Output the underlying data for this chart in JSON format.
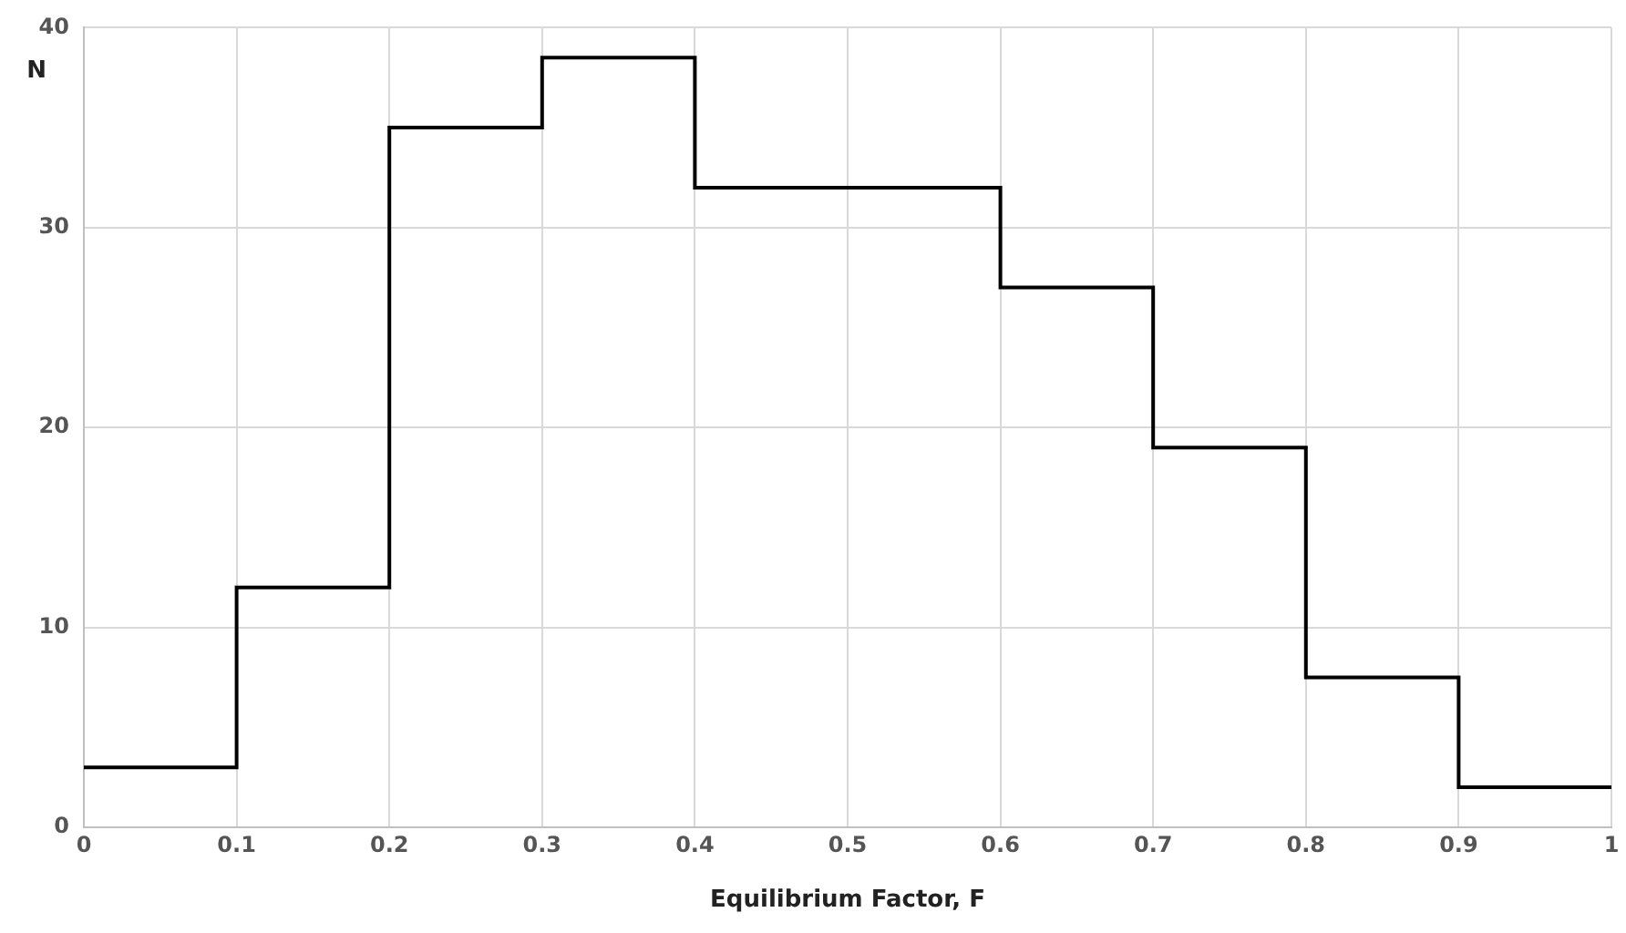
{
  "chart_data": {
    "type": "histogram",
    "xlabel": "Equilibrium Factor, F",
    "ylabel": "N",
    "bins": [
      0,
      0.1,
      0.2,
      0.3,
      0.4,
      0.5,
      0.6,
      0.7,
      0.8,
      0.9,
      1
    ],
    "values": [
      3,
      12,
      35,
      38.5,
      32,
      32,
      27,
      19,
      7.5,
      2
    ],
    "color": "#000000",
    "xlim": [
      0,
      1
    ],
    "xticks": [
      0,
      0.1,
      0.2,
      0.3,
      0.4,
      0.5,
      0.6,
      0.7,
      0.8,
      0.9,
      1
    ],
    "ylim": [
      0,
      40
    ],
    "yticks": [
      0,
      10,
      20,
      30,
      40
    ],
    "grid": true,
    "legend": false
  }
}
